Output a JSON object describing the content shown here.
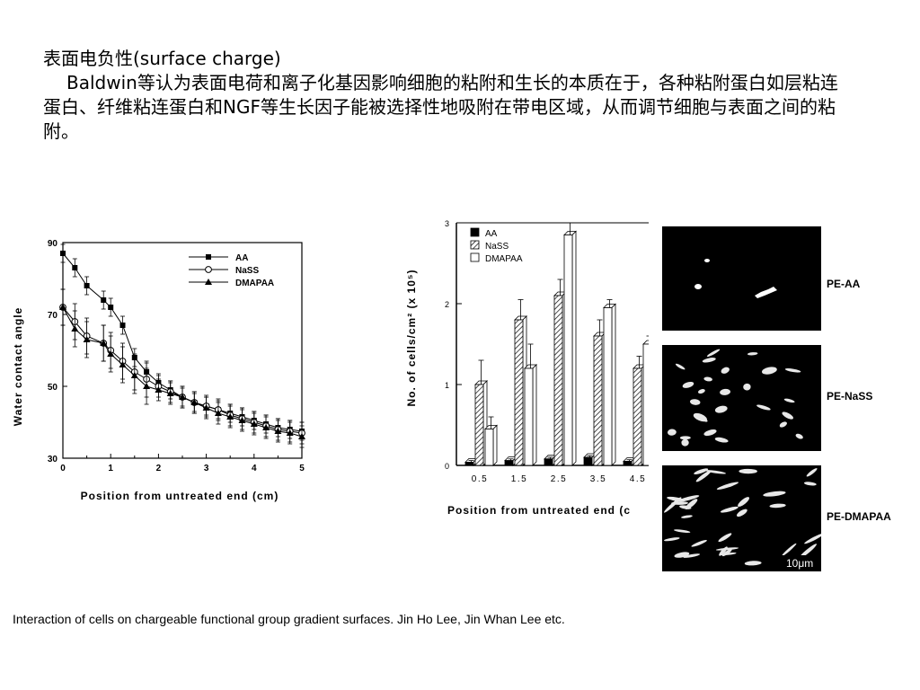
{
  "heading": "表面电负性(surface charge)",
  "paragraph": "Baldwin等认为表面电荷和离子化基因影响细胞的粘附和生长的本质在于，各种粘附蛋白如层粘连蛋白、纤维粘连蛋白和NGF等生长因子能被选择性地吸附在带电区域，从而调节细胞与表面之间的粘附。",
  "caption": "Interaction  of  cells  on  chargeable functional  group  gradient  surfaces. Jin  Ho  Lee, Jin  Whan  Lee etc.",
  "sem_labels": [
    "PE-AA",
    "PE-NaSS",
    "PE-DMAPAA"
  ],
  "scale_bar": "10μm",
  "chart_data": [
    {
      "type": "line",
      "ylabel": "Water  contact  angle",
      "xlabel": "Position  from  untreated  end  (cm)",
      "xlim": [
        0,
        5
      ],
      "ylim": [
        30,
        90
      ],
      "x_ticks": [
        "0",
        "1",
        "2",
        "3",
        "4",
        "5"
      ],
      "y_ticks": [
        "30",
        "50",
        "70",
        "90"
      ],
      "legend_position": "top-right",
      "x": [
        0,
        0.25,
        0.5,
        0.85,
        1.0,
        1.25,
        1.5,
        1.75,
        2.0,
        2.25,
        2.5,
        2.75,
        3.0,
        3.25,
        3.5,
        3.75,
        4.0,
        4.25,
        4.5,
        4.75,
        5.0
      ],
      "series": [
        {
          "name": "AA",
          "marker": "square-filled",
          "values": [
            87,
            83,
            78,
            74,
            72,
            67,
            58,
            54,
            51,
            49,
            47,
            45.5,
            44.5,
            43.5,
            42.5,
            41.5,
            40.5,
            39.5,
            38.5,
            38,
            37.5
          ]
        },
        {
          "name": "NaSS",
          "marker": "circle-open",
          "values": [
            72,
            68,
            64,
            62,
            60,
            57,
            54,
            52,
            50,
            48.5,
            47,
            45.5,
            44.5,
            43.5,
            42,
            41,
            40,
            39,
            38,
            37.5,
            37
          ]
        },
        {
          "name": "DMAPAA",
          "marker": "triangle-filled",
          "values": [
            72,
            66,
            63,
            62,
            59,
            56,
            53,
            50,
            49,
            48,
            47,
            45.5,
            44,
            42.5,
            41.5,
            40.5,
            39.5,
            38.5,
            37.5,
            37,
            36
          ]
        }
      ]
    },
    {
      "type": "bar",
      "ylabel": "No.  of  cells/cm² (x 10⁵)",
      "xlabel": "Position  from  untreated  end  (c",
      "categories": [
        "0.5",
        "1.5",
        "2.5",
        "3.5",
        "4.5"
      ],
      "ylim": [
        0,
        3
      ],
      "y_ticks": [
        "0",
        "1",
        "2",
        "3"
      ],
      "legend_position": "top-left",
      "series": [
        {
          "name": "AA",
          "fill": "#000000",
          "values": [
            0.04,
            0.06,
            0.08,
            0.1,
            0.05
          ]
        },
        {
          "name": "NaSS",
          "fill": "hatch",
          "values": [
            1.0,
            1.8,
            2.1,
            1.6,
            1.2
          ]
        },
        {
          "name": "DMAPAA",
          "fill": "#ffffff",
          "values": [
            0.45,
            1.2,
            2.85,
            1.95,
            1.5
          ]
        }
      ],
      "error": [
        [
          0.02,
          0.02,
          0.02,
          0.02,
          0.02
        ],
        [
          0.3,
          0.25,
          0.2,
          0.2,
          0.15
        ],
        [
          0.15,
          0.3,
          0.15,
          0.1,
          0.1
        ]
      ]
    }
  ]
}
